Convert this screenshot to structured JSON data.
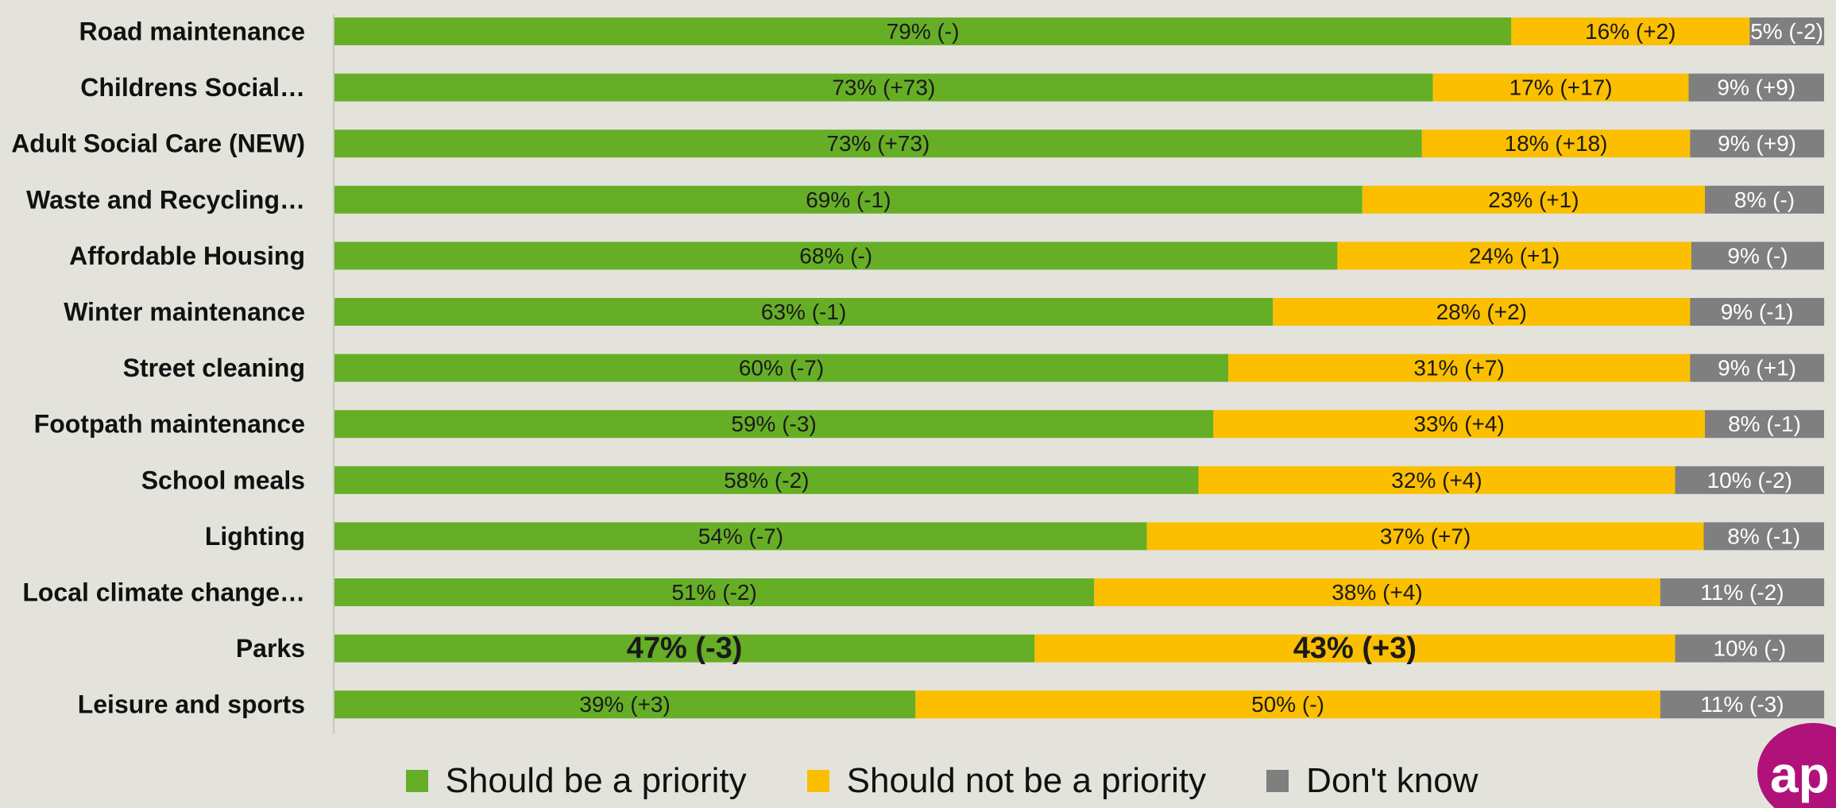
{
  "chart_data": {
    "type": "bar",
    "orientation": "horizontal",
    "stacked": true,
    "normalized_percent": true,
    "categories": [
      "Road maintenance",
      "Childrens Social…",
      "Adult Social Care (NEW)",
      "Waste and Recycling…",
      "Affordable Housing",
      "Winter maintenance",
      "Street cleaning",
      "Footpath maintenance",
      "School meals",
      "Lighting",
      "Local climate change…",
      "Parks",
      "Leisure and sports"
    ],
    "series": [
      {
        "name": "Should be a priority",
        "color": "#67ae27",
        "text_color": "#1a1a1a",
        "values": [
          79,
          73,
          73,
          69,
          68,
          63,
          60,
          59,
          58,
          54,
          51,
          47,
          39
        ],
        "labels": [
          "79% (-)",
          "73% (+73)",
          "73% (+73)",
          "69% (-1)",
          "68% (-)",
          "63% (-1)",
          "60% (-7)",
          "59% (-3)",
          "58% (-2)",
          "54% (-7)",
          "51% (-2)",
          "47% (-3)",
          "39% (+3)"
        ]
      },
      {
        "name": "Should not be a priority",
        "color": "#fbbf00",
        "text_color": "#1a1a1a",
        "values": [
          16,
          17,
          18,
          23,
          24,
          28,
          31,
          33,
          32,
          37,
          38,
          43,
          50
        ],
        "labels": [
          "16% (+2)",
          "17% (+17)",
          "18% (+18)",
          "23% (+1)",
          "24% (+1)",
          "28% (+2)",
          "31% (+7)",
          "33% (+4)",
          "32% (+4)",
          "37% (+7)",
          "38% (+4)",
          "43% (+3)",
          "50% (-)"
        ]
      },
      {
        "name": "Don't know",
        "color": "#7f7f7f",
        "text_color": "#ffffff",
        "values": [
          5,
          9,
          9,
          8,
          9,
          9,
          9,
          8,
          10,
          8,
          11,
          10,
          11
        ],
        "labels": [
          "5% (-2)",
          "9% (+9)",
          "9% (+9)",
          "8% (-)",
          "9% (-)",
          "9% (-1)",
          "9% (+1)",
          "8% (-1)",
          "10% (-2)",
          "8% (-1)",
          "11% (-2)",
          "10% (-)",
          "11% (-3)"
        ]
      }
    ],
    "highlight_category": "Parks",
    "legend_position": "bottom",
    "grid": false
  }
}
